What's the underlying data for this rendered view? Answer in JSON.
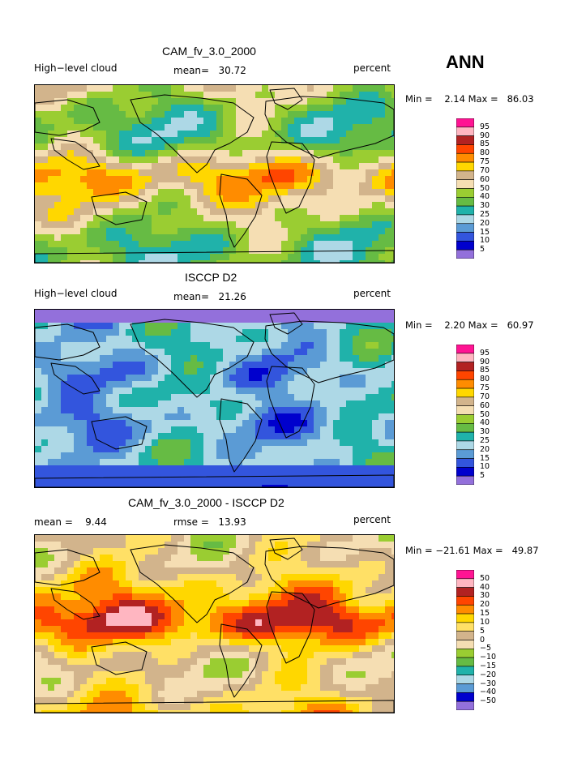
{
  "season": "ANN",
  "panels": [
    {
      "title": "CAM_fv_3.0_2000",
      "left_label": "High−level cloud",
      "center_label": "mean=   30.72",
      "right_label": "percent",
      "minmax": "Min =    2.14 Max =   86.03",
      "levels": [
        "95",
        "90",
        "85",
        "80",
        "75",
        "70",
        "60",
        "50",
        "40",
        "30",
        "25",
        "20",
        "15",
        "10",
        "5"
      ],
      "colors": [
        "#ff1493",
        "#ffb6c1",
        "#b22222",
        "#ff4500",
        "#ff8c00",
        "#ffd700",
        "#d2b48c",
        "#f5deb3",
        "#9acd32",
        "#66bb44",
        "#20b2aa",
        "#add8e6",
        "#5b9bd5",
        "#3355dd",
        "#0000cd",
        "#9370db"
      ],
      "mean_index": 8
    },
    {
      "title": "ISCCP D2",
      "left_label": "High−level cloud",
      "center_label": "mean=   21.26",
      "right_label": "percent",
      "minmax": "Min =    2.20 Max =   60.97",
      "levels": [
        "95",
        "90",
        "85",
        "80",
        "75",
        "70",
        "60",
        "50",
        "40",
        "30",
        "25",
        "20",
        "15",
        "10",
        "5"
      ],
      "colors": [
        "#ff1493",
        "#ffb6c1",
        "#b22222",
        "#ff4500",
        "#ff8c00",
        "#ffd700",
        "#d2b48c",
        "#f5deb3",
        "#9acd32",
        "#66bb44",
        "#20b2aa",
        "#add8e6",
        "#5b9bd5",
        "#3355dd",
        "#0000cd",
        "#9370db"
      ],
      "mean_index": 12
    },
    {
      "title": "CAM_fv_3.0_2000 - ISCCP D2",
      "left_label": "mean =    9.44",
      "center_label": "rmse =   13.93",
      "right_label": "percent",
      "minmax": "Min = −21.61 Max =   49.87",
      "levels": [
        "50",
        "40",
        "30",
        "20",
        "15",
        "10",
        "5",
        "0",
        "−5",
        "−10",
        "−15",
        "−20",
        "−30",
        "−40",
        "−50"
      ],
      "colors": [
        "#ff1493",
        "#ffb6c1",
        "#b22222",
        "#ff4500",
        "#ff8c00",
        "#ffd700",
        "#ffe066",
        "#d2b48c",
        "#f5deb3",
        "#9acd32",
        "#66bb44",
        "#20b2aa",
        "#add8e6",
        "#5b9bd5",
        "#0000cd",
        "#9370db"
      ],
      "mean_index": 6
    }
  ]
}
